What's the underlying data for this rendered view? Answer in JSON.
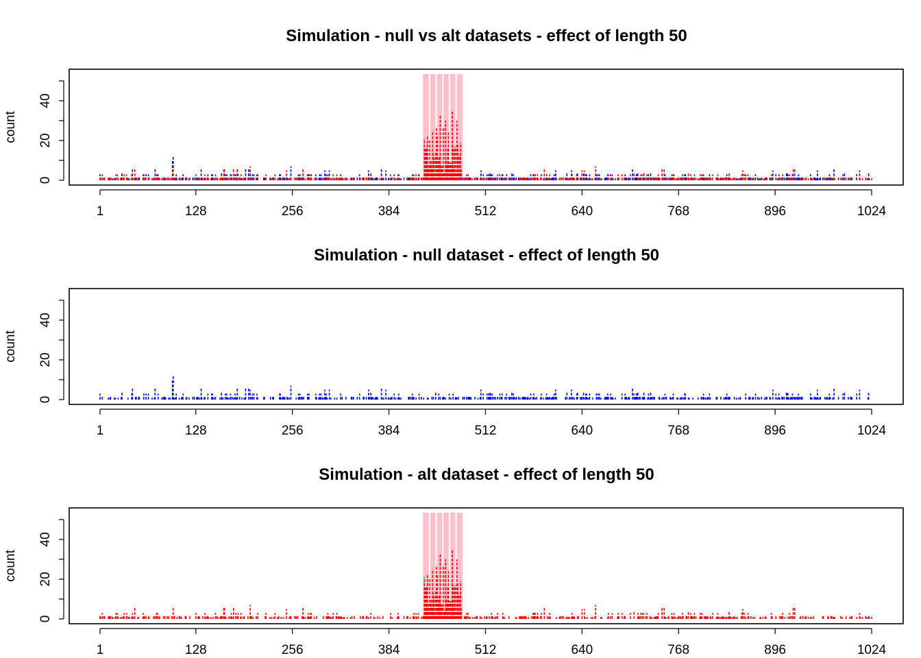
{
  "colors": {
    "null": "#0000ff",
    "alt": "#ff0000",
    "effect_region": "#ffc0cb",
    "axis": "#000000"
  },
  "chart_data": [
    {
      "type": "bar",
      "title": "Simulation - null vs alt datasets - effect of length 50",
      "ylabel": "count",
      "xlim": [
        1,
        1024
      ],
      "ylim": [
        0,
        50
      ],
      "xticks": [
        "1",
        "128",
        "256",
        "384",
        "512",
        "640",
        "768",
        "896",
        "1024"
      ],
      "yticks": [
        "0",
        "20",
        "40"
      ],
      "effect_region": [
        431,
        480
      ],
      "series": [],
      "grid": false
    },
    {
      "type": "bar",
      "title": "Simulation - null dataset - effect of length 50",
      "ylabel": "count",
      "xlim": [
        1,
        1024
      ],
      "ylim": [
        0,
        50
      ],
      "xticks": [
        "1",
        "128",
        "256",
        "384",
        "512",
        "640",
        "768",
        "896",
        "1024"
      ],
      "yticks": [
        "0",
        "20",
        "40"
      ],
      "series": [],
      "grid": false
    },
    {
      "type": "bar",
      "title": "Simulation - alt dataset - effect of length 50",
      "ylabel": "count",
      "xlim": [
        1,
        1024
      ],
      "ylim": [
        0,
        50
      ],
      "xticks": [
        "1",
        "128",
        "256",
        "384",
        "512",
        "640",
        "768",
        "896",
        "1024"
      ],
      "yticks": [
        "0",
        "20",
        "40"
      ],
      "effect_region": [
        431,
        480
      ],
      "series": [],
      "grid": false
    }
  ]
}
